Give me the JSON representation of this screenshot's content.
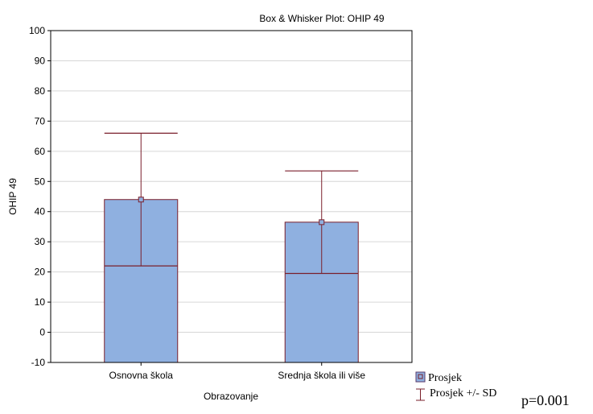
{
  "chart_data": {
    "type": "box",
    "title": "Box & Whisker Plot: OHIP 49",
    "xlabel": "Obrazovanje",
    "ylabel": "OHIP 49",
    "ylim": [
      -10,
      100
    ],
    "yticks": [
      "-10",
      "0",
      "10",
      "20",
      "30",
      "40",
      "50",
      "60",
      "70",
      "80",
      "90",
      "100"
    ],
    "grid": true,
    "categories": [
      "Osnovna škola",
      "Srednja škola ili više"
    ],
    "series": [
      {
        "mean": 44,
        "box_low": 22,
        "box_high": 44,
        "whisker_low": 22,
        "whisker_high": 66
      },
      {
        "mean": 36.5,
        "box_low": 19.5,
        "box_high": 36.5,
        "whisker_low": 19.5,
        "whisker_high": 53.5
      }
    ],
    "legend": {
      "position": "bottom-right",
      "items": [
        "Prosjek",
        "Prosjek +/- SD"
      ]
    },
    "annotation": "p=0.001",
    "colors": {
      "box_fill": "#8fb0e0",
      "box_stroke": "#7a1f2b",
      "grid": "#d6d6d6",
      "axis": "#000000"
    }
  }
}
